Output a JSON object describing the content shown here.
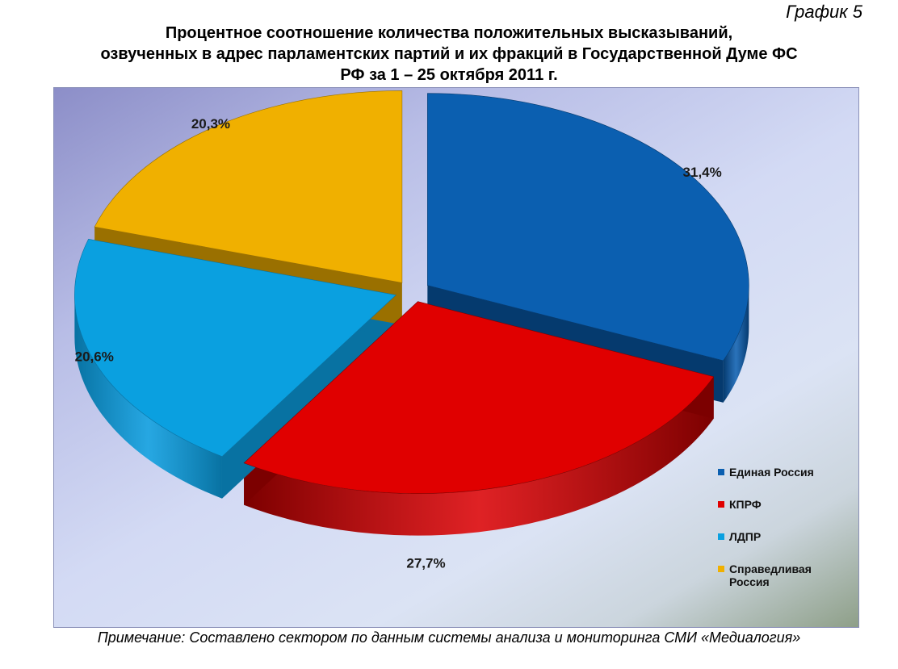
{
  "caption": "График 5",
  "title_lines": [
    "Процентное соотношение количества положительных высказываний,",
    "озвученных в адрес парламентских партий и их фракций в Государственной Думе ФС",
    "РФ за 1 – 25 октября 2011 г."
  ],
  "note": "Примечание: Составлено сектором по данным системы анализа и мониторинга СМИ «Медиалогия»",
  "chart_data": {
    "type": "pie",
    "title": "Процентное соотношение количества положительных высказываний, озвученных в адрес парламентских партий и их фракций в Государственной Думе ФС РФ за 1 – 25 октября 2011 г.",
    "categories": [
      "Единая Россия",
      "КПРФ",
      "ЛДПР",
      "Справедливая Россия"
    ],
    "values": [
      31.4,
      27.7,
      20.6,
      20.3
    ],
    "labels": [
      "31,4%",
      "27,7%",
      "20,6%",
      "20,3%"
    ],
    "colors": [
      "#0b5fb0",
      "#e00000",
      "#0aa0e0",
      "#f0b000"
    ],
    "side_colors": [
      "#053a6e",
      "#7c0000",
      "#0872a2",
      "#9a7000"
    ],
    "legend_position": "right",
    "exploded": true,
    "three_d": true
  }
}
